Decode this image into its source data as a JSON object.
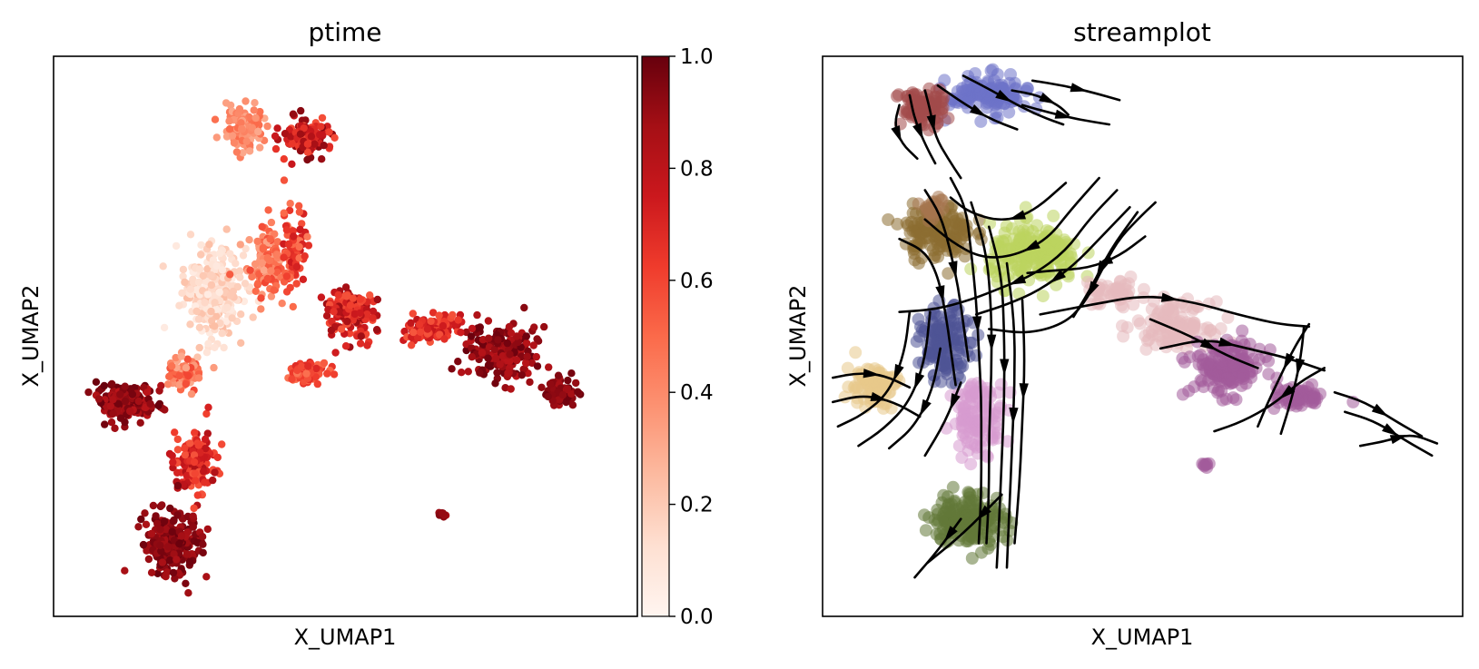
{
  "chart_data": [
    {
      "type": "scatter",
      "title": "ptime",
      "xlabel": "X_UMAP1",
      "ylabel": "X_UMAP2",
      "colorbar": {
        "colormap": "Reds",
        "ticks": [
          "0.0",
          "0.2",
          "0.4",
          "0.6",
          "0.8",
          "1.0"
        ],
        "range": [
          0,
          1
        ]
      },
      "ptime_gradient": [
        "#fff5f0",
        "#fee0d2",
        "#fcbba1",
        "#fc9272",
        "#fb6a4a",
        "#ef3b2c",
        "#cb181d",
        "#a50f15",
        "#67000d"
      ],
      "clusters": [
        {
          "x": -3.2,
          "y": 7.3,
          "sx": 1.1,
          "sy": 1.7,
          "n": 320,
          "ptime": [
            0.05,
            0.25
          ]
        },
        {
          "x": -0.9,
          "y": 8.6,
          "sx": 0.7,
          "sy": 1.2,
          "n": 130,
          "ptime": [
            0.3,
            0.6
          ]
        },
        {
          "x": 0.8,
          "y": 4.0,
          "sx": 0.8,
          "sy": 0.4,
          "n": 90,
          "ptime": [
            0.45,
            0.7
          ]
        },
        {
          "x": 2.7,
          "y": 6.5,
          "sx": 1.0,
          "sy": 0.9,
          "n": 150,
          "ptime": [
            0.55,
            0.9
          ]
        },
        {
          "x": 0.3,
          "y": 9.2,
          "sx": 0.5,
          "sy": 1.4,
          "n": 80,
          "ptime": [
            0.45,
            0.75
          ]
        },
        {
          "x": -1.8,
          "y": 14.0,
          "sx": 0.7,
          "sy": 0.8,
          "n": 130,
          "ptime": [
            0.3,
            0.5
          ]
        },
        {
          "x": 0.9,
          "y": 13.7,
          "sx": 1.0,
          "sy": 0.7,
          "n": 120,
          "ptime": [
            0.55,
            0.95
          ]
        },
        {
          "x": 9.2,
          "y": 4.8,
          "sx": 1.3,
          "sy": 1.0,
          "n": 200,
          "ptime": [
            0.8,
            1.0
          ]
        },
        {
          "x": 6.2,
          "y": 5.8,
          "sx": 1.0,
          "sy": 0.6,
          "n": 110,
          "ptime": [
            0.55,
            0.8
          ]
        },
        {
          "x": 11.8,
          "y": 3.2,
          "sx": 0.7,
          "sy": 0.5,
          "n": 70,
          "ptime": [
            0.85,
            1.0
          ]
        },
        {
          "x": -6.9,
          "y": 2.8,
          "sx": 1.1,
          "sy": 0.7,
          "n": 200,
          "ptime": [
            0.8,
            1.0
          ]
        },
        {
          "x": -4.4,
          "y": 3.9,
          "sx": 0.6,
          "sy": 0.7,
          "n": 60,
          "ptime": [
            0.3,
            0.6
          ]
        },
        {
          "x": -3.9,
          "y": 0.4,
          "sx": 0.8,
          "sy": 1.2,
          "n": 150,
          "ptime": [
            0.55,
            0.85
          ]
        },
        {
          "x": -4.9,
          "y": -3.0,
          "sx": 1.1,
          "sy": 1.2,
          "n": 230,
          "ptime": [
            0.85,
            1.0
          ]
        },
        {
          "x": 6.6,
          "y": -1.8,
          "sx": 0.15,
          "sy": 0.08,
          "n": 12,
          "ptime": [
            0.85,
            0.95
          ]
        }
      ]
    },
    {
      "type": "scatter",
      "title": "streamplot",
      "xlabel": "X_UMAP1",
      "ylabel": "X_UMAP2",
      "cluster_colors": [
        "#8c6d31",
        "#bcd35f",
        "#e5b9bd",
        "#a35b9a",
        "#6d72c8",
        "#a34a4a",
        "#4f5496",
        "#d79bd0",
        "#637939",
        "#e7c98b",
        "#a5744f",
        "#c7e2a8"
      ],
      "clusters": [
        {
          "x": -5.5,
          "y": 9.8,
          "sx": 1.2,
          "sy": 1.0,
          "n": 150,
          "c": 0
        },
        {
          "x": -1.7,
          "y": 8.8,
          "sx": 1.6,
          "sy": 1.1,
          "n": 200,
          "c": 1
        },
        {
          "x": 1.3,
          "y": 7.3,
          "sx": 1.0,
          "sy": 0.6,
          "n": 50,
          "c": 2
        },
        {
          "x": 3.7,
          "y": 6.0,
          "sx": 1.3,
          "sy": 0.8,
          "n": 120,
          "c": 2
        },
        {
          "x": 5.8,
          "y": 4.2,
          "sx": 1.3,
          "sy": 1.0,
          "n": 160,
          "c": 3
        },
        {
          "x": 8.6,
          "y": 3.0,
          "sx": 0.9,
          "sy": 0.4,
          "n": 60,
          "c": 3
        },
        {
          "x": -3.5,
          "y": 15.4,
          "sx": 1.4,
          "sy": 0.7,
          "n": 130,
          "c": 4
        },
        {
          "x": -6.1,
          "y": 14.9,
          "sx": 0.8,
          "sy": 0.7,
          "n": 90,
          "c": 5
        },
        {
          "x": -5.2,
          "y": 5.2,
          "sx": 0.9,
          "sy": 1.3,
          "n": 140,
          "c": 6
        },
        {
          "x": -3.9,
          "y": 2.2,
          "sx": 0.9,
          "sy": 1.3,
          "n": 120,
          "c": 7
        },
        {
          "x": -4.3,
          "y": -2.0,
          "sx": 1.3,
          "sy": 1.0,
          "n": 180,
          "c": 8
        },
        {
          "x": -8.1,
          "y": 3.5,
          "sx": 0.9,
          "sy": 0.8,
          "n": 80,
          "c": 9
        },
        {
          "x": -5.6,
          "y": 10.8,
          "sx": 0.6,
          "sy": 0.5,
          "n": 20,
          "c": 10
        },
        {
          "x": 4.9,
          "y": 0.2,
          "sx": 0.15,
          "sy": 0.1,
          "n": 8,
          "c": 3
        }
      ],
      "streamlines": [
        [
          [
            -7,
            9.5
          ],
          [
            -6,
            9.0
          ],
          [
            -5.5,
            8.0
          ],
          [
            -5.2,
            6.5
          ],
          [
            -5.0,
            5.0
          ],
          [
            -4.8,
            3.5
          ]
        ],
        [
          [
            -6,
            11.5
          ],
          [
            -5.4,
            10.5
          ],
          [
            -5.0,
            9.0
          ],
          [
            -4.7,
            7.5
          ],
          [
            -4.5,
            6.0
          ],
          [
            -4.3,
            4.5
          ]
        ],
        [
          [
            -5,
            12.0
          ],
          [
            -4.4,
            10.8
          ],
          [
            -4.2,
            9.0
          ],
          [
            -4.0,
            7.0
          ],
          [
            -3.9,
            5.0
          ],
          [
            -3.8,
            3.0
          ],
          [
            -3.8,
            1.0
          ],
          [
            -3.8,
            -1.0
          ],
          [
            -3.9,
            -3.0
          ]
        ],
        [
          [
            -4.2,
            11.0
          ],
          [
            -3.6,
            9.0
          ],
          [
            -3.4,
            6.5
          ],
          [
            -3.4,
            4.0
          ],
          [
            -3.5,
            1.5
          ],
          [
            -3.5,
            -1.0
          ],
          [
            -3.6,
            -3.0
          ]
        ],
        [
          [
            -3.5,
            10.0
          ],
          [
            -3.0,
            8.0
          ],
          [
            -2.9,
            5.5
          ],
          [
            -2.9,
            3.0
          ],
          [
            -3.0,
            0.5
          ],
          [
            -3.1,
            -2.0
          ],
          [
            -3.2,
            -4.0
          ]
        ],
        [
          [
            -2.8,
            8.5
          ],
          [
            -2.5,
            6.0
          ],
          [
            -2.5,
            3.5
          ],
          [
            -2.6,
            1.0
          ],
          [
            -2.7,
            -1.5
          ],
          [
            -2.8,
            -4.0
          ]
        ],
        [
          [
            -2.2,
            7.0
          ],
          [
            -2.1,
            4.5
          ],
          [
            -2.2,
            2.0
          ],
          [
            -2.3,
            -0.5
          ],
          [
            -2.5,
            -3.0
          ]
        ],
        [
          [
            -6.6,
            6.5
          ],
          [
            -6.8,
            4.8
          ],
          [
            -7.4,
            3.2
          ],
          [
            -8.4,
            2.3
          ],
          [
            -9.4,
            1.8
          ]
        ],
        [
          [
            -5.8,
            6.5
          ],
          [
            -6.0,
            4.5
          ],
          [
            -6.6,
            2.8
          ],
          [
            -7.6,
            1.7
          ],
          [
            -8.6,
            1.0
          ]
        ],
        [
          [
            -5.4,
            5.0
          ],
          [
            -5.7,
            3.3
          ],
          [
            -6.4,
            1.8
          ],
          [
            -7.4,
            0.9
          ]
        ],
        [
          [
            -4.6,
            3.6
          ],
          [
            -5.2,
            2.0
          ],
          [
            -6.0,
            0.6
          ]
        ],
        [
          [
            -9.6,
            3.8
          ],
          [
            -8.6,
            4.0
          ],
          [
            -7.6,
            3.9
          ],
          [
            -6.6,
            3.4
          ]
        ],
        [
          [
            -9.6,
            2.8
          ],
          [
            -8.4,
            3.1
          ],
          [
            -7.2,
            2.8
          ],
          [
            -6.2,
            2.2
          ]
        ],
        [
          [
            -4.6,
            -2.0
          ],
          [
            -5.5,
            -3.3
          ],
          [
            -6.4,
            -4.4
          ]
        ],
        [
          [
            -3.0,
            -1.0
          ],
          [
            -4.5,
            -2.6
          ],
          [
            -5.9,
            -3.8
          ]
        ],
        [
          [
            1.5,
            11.5
          ],
          [
            0.4,
            10.3
          ],
          [
            -0.5,
            9.0
          ],
          [
            -1.8,
            8.0
          ],
          [
            -3.0,
            7.5
          ],
          [
            -4.2,
            7.0
          ],
          [
            -5.6,
            6.6
          ],
          [
            -7.0,
            6.5
          ]
        ],
        [
          [
            2.0,
            10.8
          ],
          [
            0.9,
            9.6
          ],
          [
            -0.2,
            8.4
          ],
          [
            -1.5,
            7.4
          ],
          [
            -2.8,
            6.8
          ],
          [
            -4.0,
            6.4
          ]
        ],
        [
          [
            0.8,
            12.0
          ],
          [
            -0.3,
            10.7
          ],
          [
            -1.2,
            9.5
          ],
          [
            -2.5,
            8.8
          ],
          [
            -3.8,
            8.7
          ],
          [
            -5.0,
            9.4
          ],
          [
            -6.0,
            10.3
          ]
        ],
        [
          [
            -0.5,
            11.8
          ],
          [
            -1.8,
            10.6
          ],
          [
            -3.0,
            10.2
          ],
          [
            -4.3,
            10.6
          ],
          [
            -5.0,
            11.2
          ]
        ],
        [
          [
            2.6,
            9.6
          ],
          [
            1.6,
            8.8
          ],
          [
            0.4,
            8.3
          ],
          [
            -1.0,
            8.2
          ],
          [
            -2.0,
            8.1
          ]
        ],
        [
          [
            3.0,
            11.0
          ],
          [
            2.3,
            10.3
          ],
          [
            1.5,
            9.4
          ],
          [
            0.8,
            8.0
          ],
          [
            0.2,
            6.8
          ],
          [
            -0.6,
            6.0
          ],
          [
            -2.0,
            5.6
          ],
          [
            -3.5,
            5.8
          ]
        ],
        [
          [
            2.3,
            10.6
          ],
          [
            1.2,
            9.0
          ],
          [
            0.5,
            7.5
          ],
          [
            -0.2,
            6.3
          ]
        ],
        [
          [
            -1.5,
            6.4
          ],
          [
            0.5,
            6.8
          ],
          [
            2.6,
            7.2
          ],
          [
            4.5,
            6.9
          ],
          [
            6.2,
            6.4
          ],
          [
            7.8,
            6.0
          ],
          [
            9.0,
            5.9
          ]
        ],
        [
          [
            2.8,
            6.2
          ],
          [
            4.4,
            5.5
          ],
          [
            5.8,
            4.7
          ],
          [
            7.0,
            4.2
          ]
        ],
        [
          [
            3.2,
            5.0
          ],
          [
            5.0,
            5.4
          ],
          [
            6.6,
            5.0
          ],
          [
            8.2,
            4.6
          ],
          [
            9.6,
            4.1
          ]
        ],
        [
          [
            9.0,
            6.0
          ],
          [
            8.4,
            5.0
          ],
          [
            7.9,
            3.9
          ],
          [
            7.4,
            2.8
          ],
          [
            7.0,
            1.8
          ]
        ],
        [
          [
            8.8,
            5.9
          ],
          [
            8.7,
            4.8
          ],
          [
            8.5,
            3.7
          ],
          [
            8.2,
            2.5
          ],
          [
            7.9,
            1.5
          ]
        ],
        [
          [
            9.6,
            4.2
          ],
          [
            8.6,
            3.6
          ],
          [
            7.6,
            2.7
          ],
          [
            6.4,
            2.0
          ],
          [
            5.3,
            1.6
          ]
        ],
        [
          [
            10.0,
            3.2
          ],
          [
            11.2,
            2.8
          ],
          [
            12.4,
            2.0
          ],
          [
            13.4,
            1.4
          ]
        ],
        [
          [
            10.4,
            2.4
          ],
          [
            11.6,
            2.0
          ],
          [
            12.8,
            1.2
          ],
          [
            13.8,
            0.6
          ]
        ],
        [
          [
            11.0,
            1.0
          ],
          [
            12.0,
            1.2
          ],
          [
            13.0,
            1.5
          ],
          [
            14.0,
            1.1
          ]
        ],
        [
          [
            -2.6,
            15.6
          ],
          [
            -1.6,
            15.4
          ],
          [
            -0.8,
            15.0
          ],
          [
            -0.4,
            14.6
          ]
        ],
        [
          [
            -4.5,
            16.2
          ],
          [
            -3.4,
            15.6
          ],
          [
            -2.4,
            15.0
          ],
          [
            -1.4,
            14.5
          ],
          [
            -0.6,
            14.2
          ]
        ],
        [
          [
            -5.5,
            15.8
          ],
          [
            -4.4,
            15.0
          ],
          [
            -3.4,
            14.4
          ],
          [
            -2.4,
            14.0
          ]
        ],
        [
          [
            -6.0,
            15.6
          ],
          [
            -5.8,
            14.8
          ],
          [
            -5.6,
            13.7
          ],
          [
            -5.1,
            12.8
          ],
          [
            -4.6,
            12.0
          ]
        ],
        [
          [
            -6.6,
            15.4
          ],
          [
            -6.4,
            14.4
          ],
          [
            -6.0,
            13.4
          ],
          [
            -5.6,
            12.6
          ]
        ],
        [
          [
            -7.0,
            15.0
          ],
          [
            -7.2,
            14.2
          ],
          [
            -6.9,
            13.4
          ],
          [
            -6.3,
            12.8
          ]
        ],
        [
          [
            -1.8,
            16.0
          ],
          [
            -0.6,
            15.8
          ],
          [
            0.6,
            15.5
          ],
          [
            1.6,
            15.2
          ]
        ],
        [
          [
            -2.2,
            15.0
          ],
          [
            -1.2,
            14.7
          ],
          [
            0.0,
            14.4
          ],
          [
            1.2,
            14.2
          ]
        ]
      ]
    }
  ]
}
